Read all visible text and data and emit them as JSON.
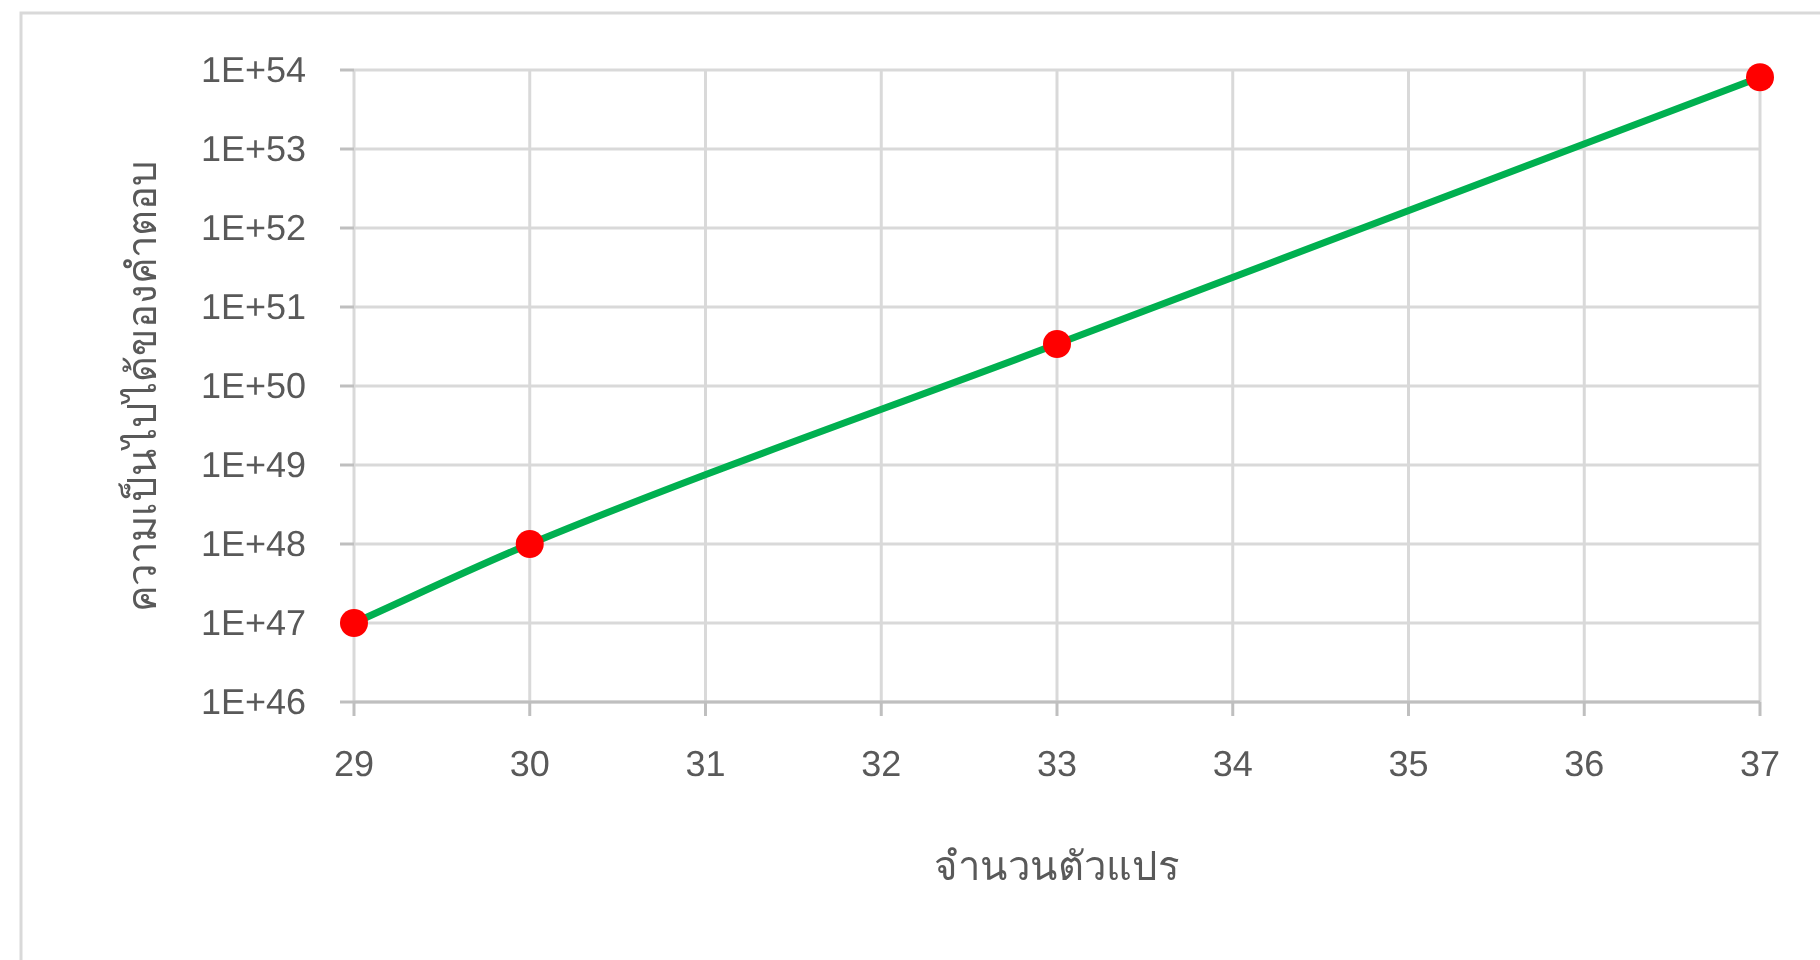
{
  "chart_data": {
    "type": "line",
    "xlabel": "จำนวนตัวแปร",
    "ylabel": "ความเป็นไปได้ของคำตอบ",
    "x": [
      29,
      30,
      33,
      37
    ],
    "series": [
      {
        "color": "#00b050",
        "colors": [
          "#ff0000",
          "#ff0000",
          "#ff0000",
          "#ff0000"
        ],
        "values": [
          1e+47,
          1e+48,
          3.4e+50,
          8.1e+53
        ]
      }
    ],
    "xlim": [
      29,
      37
    ],
    "xticks": [
      29,
      30,
      31,
      32,
      33,
      34,
      35,
      36,
      37
    ],
    "ylim": [
      1e+46,
      1e+54
    ],
    "yticks": [
      {
        "value": 1e+46,
        "label": "1E+46"
      },
      {
        "value": 1e+47,
        "label": "1E+47"
      },
      {
        "value": 1e+48,
        "label": "1E+48"
      },
      {
        "value": 1e+49,
        "label": "1E+49"
      },
      {
        "value": 1e+50,
        "label": "1E+50"
      },
      {
        "value": 1e+51,
        "label": "1E+51"
      },
      {
        "value": 1e+52,
        "label": "1E+52"
      },
      {
        "value": 1e+53,
        "label": "1E+53"
      },
      {
        "value": 1e+54,
        "label": "1E+54"
      }
    ],
    "log": true,
    "grid": true,
    "marker": "circle",
    "line_style": "solid"
  }
}
